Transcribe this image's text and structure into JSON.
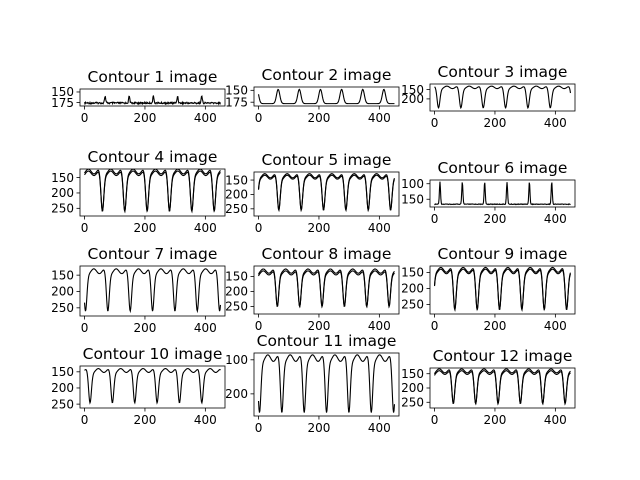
{
  "chart_data": [
    {
      "type": "line",
      "title": "Contour 1 image",
      "xlim": [
        -15,
        465
      ],
      "ylim": [
        183,
        143
      ],
      "xticks": [
        0,
        200,
        400
      ],
      "yticks": [
        150,
        175
      ],
      "ytick_labels": [
        "150",
        "175"
      ],
      "line_color": "#000000",
      "series": [
        {
          "pattern": "spikes-up",
          "period": 80,
          "phase": 28,
          "base": 176,
          "amp": 16,
          "noise": 4
        }
      ]
    },
    {
      "type": "line",
      "title": "Contour 2 image",
      "xlim": [
        -15,
        465
      ],
      "ylim": [
        183,
        143
      ],
      "xticks": [
        0,
        200,
        400
      ],
      "yticks": [
        150,
        175
      ],
      "ytick_labels": [
        "150",
        "175"
      ],
      "line_color": "#000000",
      "series": [
        {
          "pattern": "bumps-up",
          "period": 70,
          "phase": 30,
          "base": 178,
          "amp": 30
        }
      ]
    },
    {
      "type": "line",
      "title": "Contour 3 image",
      "xlim": [
        -15,
        465
      ],
      "ylim": [
        265,
        120
      ],
      "xticks": [
        0,
        200,
        400
      ],
      "yticks": [
        150,
        200
      ],
      "ytick_labels": [
        "150",
        "200"
      ],
      "line_color": "#000000",
      "series": [
        {
          "pattern": "dips-down",
          "period": 74,
          "phase": 50,
          "base": 138,
          "amp": 110
        }
      ]
    },
    {
      "type": "line",
      "title": "Contour 4 image",
      "xlim": [
        -15,
        465
      ],
      "ylim": [
        275,
        122
      ],
      "xticks": [
        0,
        200,
        400
      ],
      "yticks": [
        150,
        200,
        250
      ],
      "ytick_labels": [
        "150",
        "200",
        "250"
      ],
      "line_color": "#000000",
      "series": [
        {
          "pattern": "dips-down",
          "period": 74,
          "phase": 22,
          "base": 130,
          "amp": 130
        },
        {
          "pattern": "dips-down",
          "period": 74,
          "phase": 22,
          "base": 136,
          "amp": 122
        }
      ]
    },
    {
      "type": "line",
      "title": "Contour 5 image",
      "xlim": [
        -15,
        465
      ],
      "ylim": [
        275,
        122
      ],
      "xticks": [
        0,
        200,
        400
      ],
      "yticks": [
        150,
        200,
        250
      ],
      "ytick_labels": [
        "150",
        "200",
        "250"
      ],
      "line_color": "#000000",
      "series": [
        {
          "pattern": "dips-down",
          "period": 74,
          "phase": 30,
          "base": 135,
          "amp": 120
        },
        {
          "pattern": "dips-down",
          "period": 74,
          "phase": 30,
          "base": 140,
          "amp": 113
        }
      ]
    },
    {
      "type": "line",
      "title": "Contour 6 image",
      "xlim": [
        -15,
        465
      ],
      "ylim": [
        175,
        88
      ],
      "xticks": [
        0,
        200,
        400
      ],
      "yticks": [
        100,
        150
      ],
      "ytick_labels": [
        "100",
        "150"
      ],
      "line_color": "#000000",
      "series": [
        {
          "pattern": "spikes-up",
          "period": 74,
          "phase": 55,
          "base": 166,
          "amp": 72,
          "noise": 2
        }
      ]
    },
    {
      "type": "line",
      "title": "Contour 7 image",
      "xlim": [
        -15,
        465
      ],
      "ylim": [
        275,
        122
      ],
      "xticks": [
        0,
        200,
        400
      ],
      "yticks": [
        150,
        200,
        250
      ],
      "ytick_labels": [
        "150",
        "200",
        "250"
      ],
      "line_color": "#000000",
      "series": [
        {
          "pattern": "dips-down",
          "period": 74,
          "phase": 40,
          "base": 138,
          "amp": 122
        }
      ]
    },
    {
      "type": "line",
      "title": "Contour 8 image",
      "xlim": [
        -15,
        465
      ],
      "ylim": [
        275,
        115
      ],
      "xticks": [
        0,
        200,
        400
      ],
      "yticks": [
        150,
        200,
        250
      ],
      "ytick_labels": [
        "150",
        "200",
        "250"
      ],
      "line_color": "#000000",
      "series": [
        {
          "pattern": "dips-down",
          "period": 74,
          "phase": 25,
          "base": 132,
          "amp": 118
        },
        {
          "pattern": "dips-down",
          "period": 74,
          "phase": 25,
          "base": 138,
          "amp": 112
        }
      ]
    },
    {
      "type": "line",
      "title": "Contour 9 image",
      "xlim": [
        -15,
        465
      ],
      "ylim": [
        280,
        130
      ],
      "xticks": [
        0,
        200,
        400
      ],
      "yticks": [
        150,
        200,
        250
      ],
      "ytick_labels": [
        "150",
        "200",
        "250"
      ],
      "line_color": "#000000",
      "series": [
        {
          "pattern": "dips-down",
          "period": 74,
          "phase": 30,
          "base": 142,
          "amp": 125
        },
        {
          "pattern": "dips-down",
          "period": 74,
          "phase": 30,
          "base": 147,
          "amp": 118
        }
      ]
    },
    {
      "type": "line",
      "title": "Contour 10 image",
      "xlim": [
        -15,
        465
      ],
      "ylim": [
        262,
        132
      ],
      "xticks": [
        0,
        200,
        400
      ],
      "yticks": [
        150,
        200,
        250
      ],
      "ytick_labels": [
        "150",
        "200",
        "250"
      ],
      "line_color": "#000000",
      "series": [
        {
          "pattern": "dips-down",
          "period": 74,
          "phase": 55,
          "base": 146,
          "amp": 100
        }
      ]
    },
    {
      "type": "line",
      "title": "Contour 11 image",
      "xlim": [
        -15,
        465
      ],
      "ylim": [
        265,
        80
      ],
      "xticks": [
        0,
        200,
        400
      ],
      "yticks": [
        100,
        200
      ],
      "ytick_labels": [
        "100",
        "200"
      ],
      "line_color": "#000000",
      "series": [
        {
          "pattern": "dips-down",
          "period": 74,
          "phase": 40,
          "base": 95,
          "amp": 160
        }
      ]
    },
    {
      "type": "line",
      "title": "Contour 12 image",
      "xlim": [
        -15,
        465
      ],
      "ylim": [
        270,
        130
      ],
      "xticks": [
        0,
        200,
        400
      ],
      "yticks": [
        150,
        200,
        250
      ],
      "ytick_labels": [
        "150",
        "200",
        "250"
      ],
      "line_color": "#000000",
      "series": [
        {
          "pattern": "dips-down",
          "period": 74,
          "phase": 25,
          "base": 140,
          "amp": 115
        },
        {
          "pattern": "dips-down",
          "period": 74,
          "phase": 25,
          "base": 146,
          "amp": 108
        }
      ]
    }
  ]
}
